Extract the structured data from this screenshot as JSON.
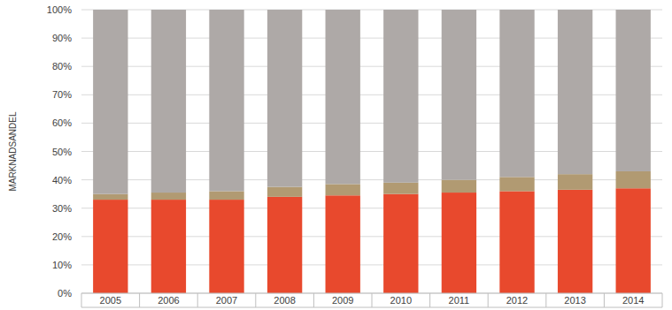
{
  "chart_data": {
    "type": "bar",
    "stacked": true,
    "grid": true,
    "y_label": "MARKNADSANDEL",
    "categories": [
      "2005",
      "2006",
      "2007",
      "2008",
      "2009",
      "2010",
      "2011",
      "2012",
      "2013",
      "2014"
    ],
    "series": [
      {
        "color": "#e8492d",
        "values": [
          33,
          33,
          33,
          34,
          34.5,
          35,
          35.5,
          36,
          36.5,
          37
        ]
      },
      {
        "color": "#b19a72",
        "values": [
          2,
          2.5,
          3,
          3.5,
          4,
          4,
          4.5,
          5,
          5.5,
          6
        ]
      },
      {
        "color": "#aea9a7",
        "values": [
          65,
          64.5,
          64,
          62.5,
          61.5,
          61,
          60,
          59,
          58,
          57
        ]
      }
    ],
    "ylim": [
      0,
      100
    ],
    "yticks": [
      {
        "value": 0,
        "label": "0%"
      },
      {
        "value": 10,
        "label": "10%"
      },
      {
        "value": 20,
        "label": "20%"
      },
      {
        "value": 30,
        "label": "30%"
      },
      {
        "value": 40,
        "label": "40%"
      },
      {
        "value": 50,
        "label": "50%"
      },
      {
        "value": 60,
        "label": "60%"
      },
      {
        "value": 70,
        "label": "70%"
      },
      {
        "value": 80,
        "label": "80%"
      },
      {
        "value": 90,
        "label": "90%"
      },
      {
        "value": 100,
        "label": "100%"
      }
    ]
  }
}
